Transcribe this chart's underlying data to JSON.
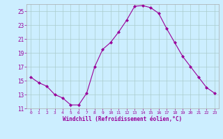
{
  "x": [
    0,
    1,
    2,
    3,
    4,
    5,
    6,
    7,
    8,
    9,
    10,
    11,
    12,
    13,
    14,
    15,
    16,
    17,
    18,
    19,
    20,
    21,
    22,
    23
  ],
  "y": [
    15.5,
    14.7,
    14.2,
    13.0,
    12.5,
    11.5,
    11.5,
    13.2,
    17.0,
    19.5,
    20.5,
    22.0,
    23.7,
    25.7,
    25.8,
    25.5,
    24.7,
    22.5,
    20.5,
    18.5,
    17.0,
    15.5,
    14.0,
    13.2
  ],
  "line_color": "#990099",
  "marker": "D",
  "marker_size": 2.0,
  "bg_color": "#cceeff",
  "grid_color": "#aacccc",
  "xlabel": "Windchill (Refroidissement éolien,°C)",
  "xlabel_color": "#990099",
  "tick_color": "#990099",
  "ylim": [
    11,
    26
  ],
  "yticks": [
    11,
    13,
    15,
    17,
    19,
    21,
    23,
    25
  ],
  "xlim": [
    -0.5,
    23.5
  ],
  "xticks": [
    0,
    1,
    2,
    3,
    4,
    5,
    6,
    7,
    8,
    9,
    10,
    11,
    12,
    13,
    14,
    15,
    16,
    17,
    18,
    19,
    20,
    21,
    22,
    23
  ],
  "figsize": [
    3.2,
    2.0
  ],
  "dpi": 100
}
